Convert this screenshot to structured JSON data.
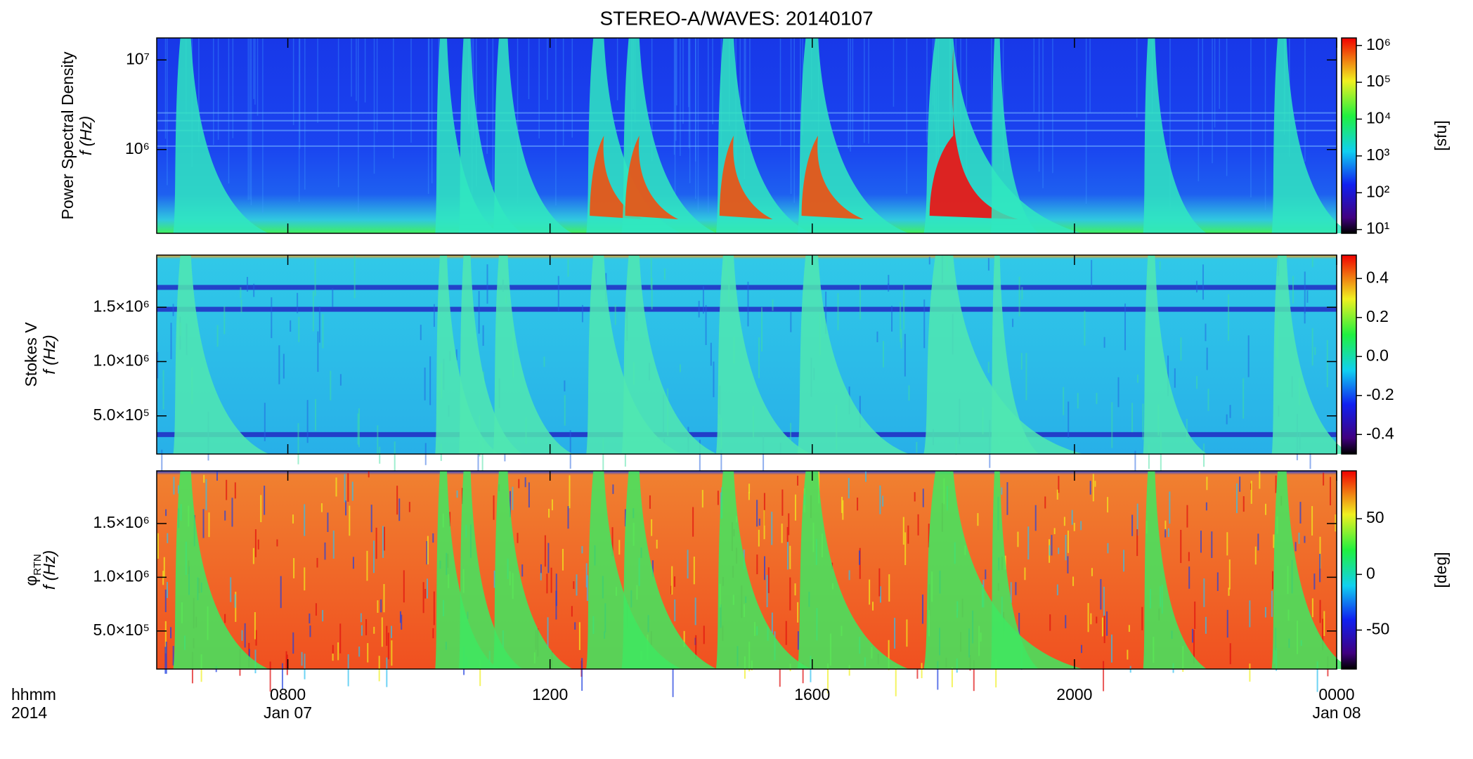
{
  "chart_data": [
    {
      "type": "spectrogram",
      "title": "STEREO-A/WAVES: 20140107",
      "ylabel": "Power Spectral Density",
      "ylabel2": "f (Hz)",
      "ylog": true,
      "ylim": [
        116000,
        17600000
      ],
      "yticks": [
        {
          "value": 1000000,
          "label": "10⁶"
        },
        {
          "value": 10000000,
          "label": "10⁷"
        }
      ],
      "xlim": [
        6,
        24
      ],
      "xticks": [
        8,
        12,
        16,
        20,
        24
      ],
      "colorbar": {
        "log": true,
        "lim": [
          7.9,
          1600000
        ],
        "label": "[sfu]",
        "ticks": [
          {
            "value": 10,
            "label": "10¹"
          },
          {
            "value": 100,
            "label": "10²"
          },
          {
            "value": 1000,
            "label": "10³"
          },
          {
            "value": 10000,
            "label": "10⁴"
          },
          {
            "value": 100000,
            "label": "10⁵"
          },
          {
            "value": 1000000,
            "label": "10⁶"
          }
        ]
      }
    },
    {
      "type": "spectrogram",
      "ylabel": "Stokes V",
      "ylabel2": "f (Hz)",
      "ylog": false,
      "ylim": [
        149000,
        1980000
      ],
      "yticks": [
        {
          "value": 500000,
          "label": "5.0×10⁵"
        },
        {
          "value": 1000000,
          "label": "1.0×10⁶"
        },
        {
          "value": 1500000,
          "label": "1.5×10⁶"
        }
      ],
      "xlim": [
        6,
        24
      ],
      "xticks": [
        8,
        12,
        16,
        20,
        24
      ],
      "colorbar": {
        "log": false,
        "lim": [
          -0.5,
          0.52
        ],
        "ticks": [
          -0.4,
          -0.2,
          {
            "value": 0,
            "label": "0.0"
          },
          0.2,
          0.4
        ]
      }
    },
    {
      "type": "spectrogram",
      "ylabel": "φ",
      "ylabel_sub": "RTN",
      "ylabel2": "f (Hz)",
      "ylog": false,
      "ylim": [
        146000,
        1990000
      ],
      "yticks": [
        {
          "value": 500000,
          "label": "5.0×10⁵"
        },
        {
          "value": 1000000,
          "label": "1.0×10⁶"
        },
        {
          "value": 1500000,
          "label": "1.5×10⁶"
        }
      ],
      "xlim": [
        6,
        24
      ],
      "xticks": [
        {
          "value": 8,
          "label": "0800"
        },
        {
          "value": 12,
          "label": "1200"
        },
        {
          "value": 16,
          "label": "1600"
        },
        {
          "value": 20,
          "label": "2000"
        },
        {
          "value": 24,
          "label": "0000"
        }
      ],
      "x_sublabels": [
        {
          "value": 8,
          "label": "Jan 07"
        },
        {
          "value": 24,
          "label": "Jan 08"
        }
      ],
      "xlabel": "hhmm",
      "xlabel2": "2014",
      "colorbar": {
        "log": false,
        "lim": [
          -85,
          93
        ],
        "label": "[deg]",
        "ticks": [
          -50,
          0,
          50
        ]
      }
    }
  ]
}
